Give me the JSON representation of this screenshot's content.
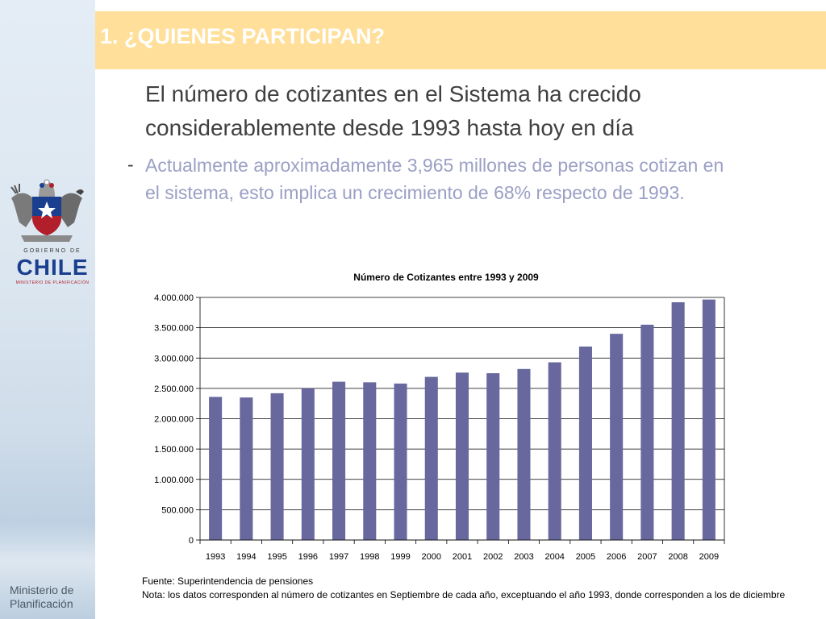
{
  "slide": {
    "title": "1. ¿QUIENES PARTICIPAN?",
    "heading": "El número de cotizantes en el Sistema ha crecido considerablemente desde 1993 hasta hoy en día",
    "bullet_marker": "-",
    "bullet": "Actualmente aproximadamente 3,965 millones de personas cotizan en el sistema, esto implica un crecimiento de 68% respecto de 1993.",
    "source": "Fuente: Superintendencia de pensiones",
    "note": "Nota: los datos corresponden al número de cotizantes en Septiembre de cada año, exceptuando el año 1993, donde corresponden a  los de diciembre"
  },
  "logo": {
    "gobierno": "GOBIERNO DE",
    "chile": "CHILE",
    "ministerio_small": "MINISTERIO DE PLANIFICACIÓN",
    "ministerio_line1": "Ministerio de",
    "ministerio_line2": "Planificación",
    "colors": {
      "blue": "#1b3f8f",
      "red": "#b21e2a"
    }
  },
  "chart_data": {
    "type": "bar",
    "title": "Número de Cotizantes entre 1993 y 2009",
    "xlabel": "",
    "ylabel": "",
    "categories": [
      "1993",
      "1994",
      "1995",
      "1996",
      "1997",
      "1998",
      "1999",
      "2000",
      "2001",
      "2002",
      "2003",
      "2004",
      "2005",
      "2006",
      "2007",
      "2008",
      "2009"
    ],
    "values": [
      2360000,
      2350000,
      2420000,
      2500000,
      2610000,
      2600000,
      2580000,
      2690000,
      2760000,
      2750000,
      2820000,
      2930000,
      3190000,
      3400000,
      3550000,
      3920000,
      3965000
    ],
    "ylim": [
      0,
      4000000
    ],
    "yticks": [
      "0",
      "500.000",
      "1.000.000",
      "1.500.000",
      "2.000.000",
      "2.500.000",
      "3.000.000",
      "3.500.000",
      "4.000.000"
    ],
    "grid": true,
    "legend": "none",
    "bar_color": "#68689e"
  }
}
